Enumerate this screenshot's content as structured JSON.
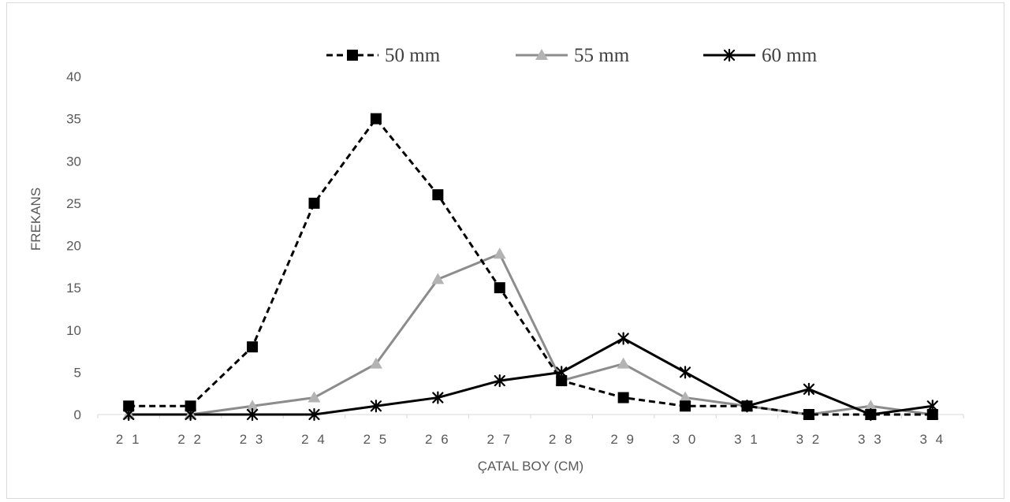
{
  "chart_data": {
    "type": "line",
    "categories": [
      "21",
      "22",
      "23",
      "24",
      "25",
      "26",
      "27",
      "28",
      "29",
      "30",
      "31",
      "32",
      "33",
      "34"
    ],
    "categories_display": [
      "2 1",
      "2 2",
      "2 3",
      "2 4",
      "2 5",
      "2 6",
      "2 7",
      "2 8",
      "2 9",
      "3 0",
      "3 1",
      "3 2",
      "3 3",
      "3 4"
    ],
    "series": [
      {
        "name": "50 mm",
        "values": [
          1,
          1,
          8,
          25,
          35,
          26,
          15,
          4,
          2,
          1,
          1,
          0,
          0,
          0
        ],
        "color": "#000000",
        "dash": "dashed",
        "marker": "square"
      },
      {
        "name": "55 mm",
        "values": [
          0,
          0,
          1,
          2,
          6,
          16,
          19,
          4,
          6,
          2,
          1,
          0,
          1,
          0
        ],
        "color": "#8c8c8c",
        "dash": "solid",
        "marker": "triangle"
      },
      {
        "name": "60 mm",
        "values": [
          0,
          0,
          0,
          0,
          1,
          2,
          4,
          5,
          9,
          5,
          1,
          3,
          0,
          1
        ],
        "color": "#000000",
        "dash": "solid",
        "marker": "star"
      }
    ],
    "xlabel": "ÇATAL BOY (CM)",
    "ylabel": "FREKANS",
    "ylim": [
      0,
      40
    ],
    "yticks": [
      0,
      5,
      10,
      15,
      20,
      25,
      30,
      35,
      40
    ],
    "grid": false,
    "legend_position": "top"
  }
}
